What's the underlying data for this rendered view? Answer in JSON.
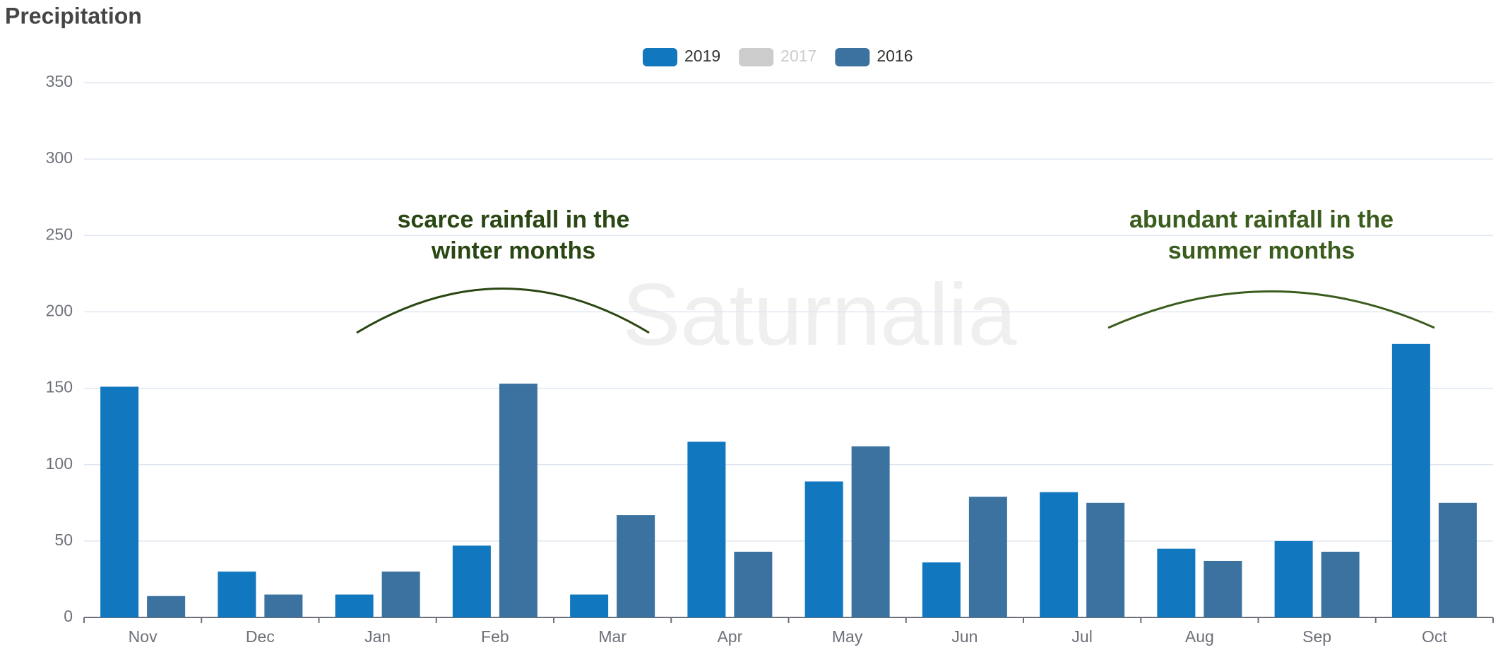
{
  "chart_data": {
    "type": "bar",
    "title": "Precipitation",
    "categories": [
      "Nov",
      "Dec",
      "Jan",
      "Feb",
      "Mar",
      "Apr",
      "May",
      "Jun",
      "Jul",
      "Aug",
      "Sep",
      "Oct"
    ],
    "series": [
      {
        "name": "2019",
        "color": "#1177bf",
        "values": [
          151,
          30,
          15,
          47,
          15,
          115,
          89,
          36,
          82,
          45,
          50,
          179
        ]
      },
      {
        "name": "2017",
        "color": "#cccccc",
        "hidden": true,
        "values": [
          null,
          null,
          null,
          null,
          null,
          null,
          null,
          null,
          null,
          null,
          null,
          null
        ]
      },
      {
        "name": "2016",
        "color": "#3b729f",
        "values": [
          14,
          15,
          30,
          153,
          67,
          43,
          112,
          79,
          75,
          37,
          43,
          75
        ]
      }
    ],
    "ylim": [
      0,
      350
    ],
    "yticks": [
      0,
      50,
      100,
      150,
      200,
      250,
      300,
      350
    ],
    "grid": true,
    "watermark": "Saturnalia",
    "annotations": [
      {
        "lines": [
          "scarce rainfall in the",
          "winter months"
        ],
        "color": "#2a4713"
      },
      {
        "lines": [
          "abundant rainfall in the",
          "summer months"
        ],
        "color": "#3a5c1c"
      }
    ]
  }
}
